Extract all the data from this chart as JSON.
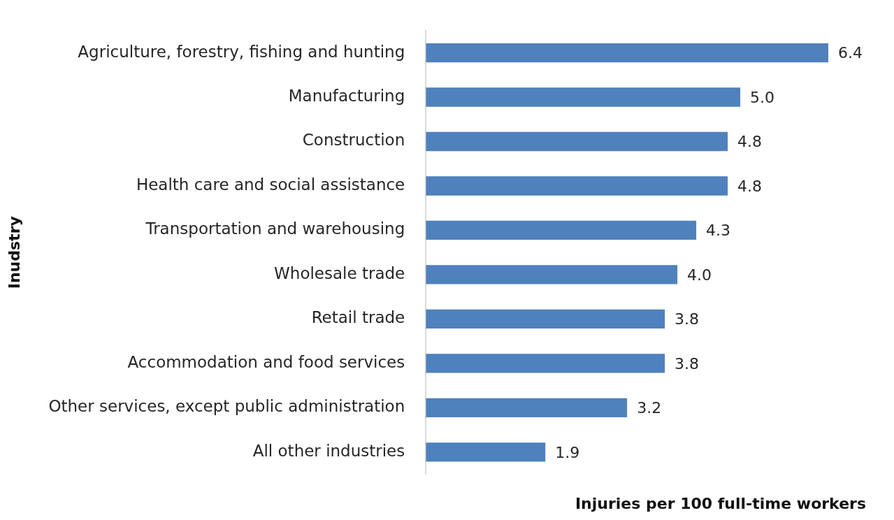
{
  "chart_data": {
    "type": "bar",
    "orientation": "horizontal",
    "xlabel": "Injuries per 100 full-time workers",
    "ylabel": "Inudstry",
    "categories": [
      "Agriculture, forestry, fishing and hunting",
      "Manufacturing",
      "Construction",
      "Health care and social assistance",
      "Transportation and warehousing",
      "Wholesale trade",
      "Retail trade",
      "Accommodation and food services",
      "Other services, except public administration",
      "All other industries"
    ],
    "values": [
      6.4,
      5.0,
      4.8,
      4.8,
      4.3,
      4.0,
      3.8,
      3.8,
      3.2,
      1.9
    ],
    "value_labels": [
      "6.4",
      "5.0",
      "4.8",
      "4.8",
      "4.3",
      "4.0",
      "3.8",
      "3.8",
      "3.2",
      "1.9"
    ],
    "color": "#4f81bd",
    "grid": false,
    "legend": false,
    "tick_labels": "y"
  }
}
